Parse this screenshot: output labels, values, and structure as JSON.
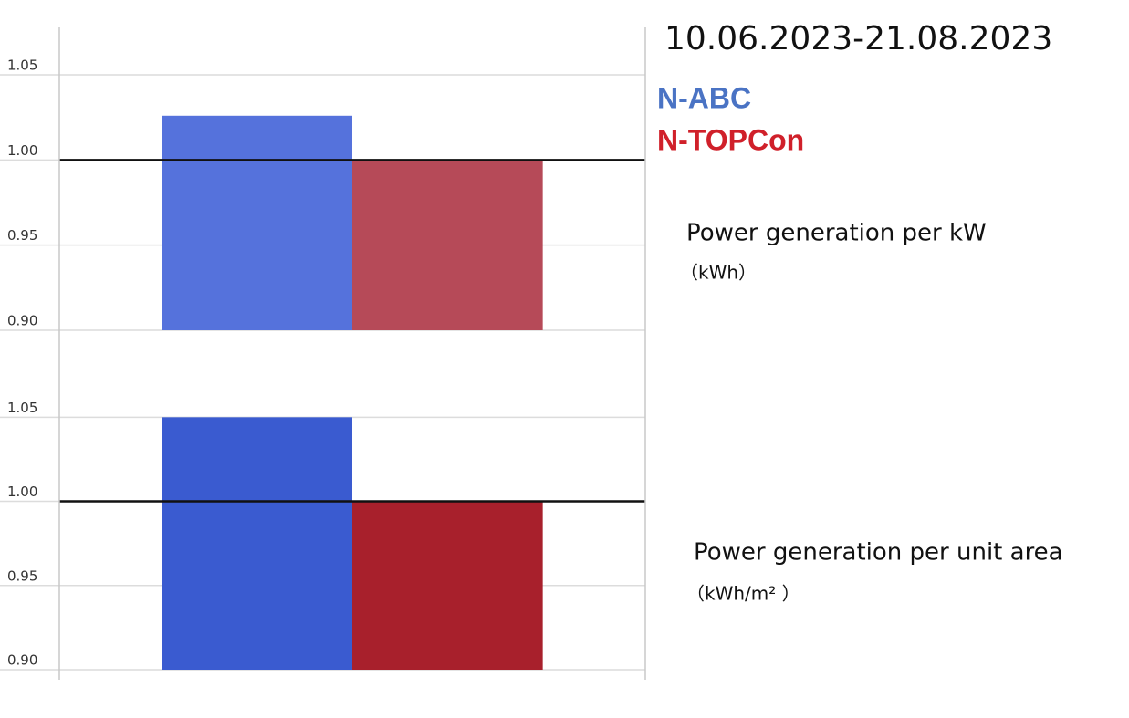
{
  "title": "10.06.2023-21.08.2023",
  "chart_data": [
    {
      "type": "bar",
      "annotation": "Power generation per kW",
      "unit": "（kWh）",
      "categories": [
        null
      ],
      "series": [
        {
          "name": "N-ABC",
          "color": "#5572dc",
          "values": [
            1.026
          ]
        },
        {
          "name": "N-TOPCon",
          "color": "#b64a58",
          "values": [
            1.0
          ]
        }
      ],
      "ylim": [
        0.9,
        1.08
      ],
      "yticks": [
        {
          "value": 0.9,
          "label": "0.90"
        },
        0.95,
        {
          "value": 1.0,
          "label": "1.00"
        },
        1.05
      ],
      "grid": true,
      "baseline": 1.0
    },
    {
      "type": "bar",
      "annotation": "Power generation per unit area",
      "unit": "（kWh/m² ）",
      "categories": [
        null
      ],
      "series": [
        {
          "name": "N-ABC",
          "color": "#3a5bd0",
          "values": [
            1.05
          ]
        },
        {
          "name": "N-TOPCon",
          "color": "#a8202c",
          "values": [
            1.0
          ]
        }
      ],
      "ylim": [
        0.9,
        1.08
      ],
      "yticks": [
        {
          "value": 0.9,
          "label": "0.90"
        },
        0.95,
        {
          "value": 1.0,
          "label": "1.00"
        },
        1.05
      ],
      "grid": true,
      "baseline": 1.0
    }
  ]
}
